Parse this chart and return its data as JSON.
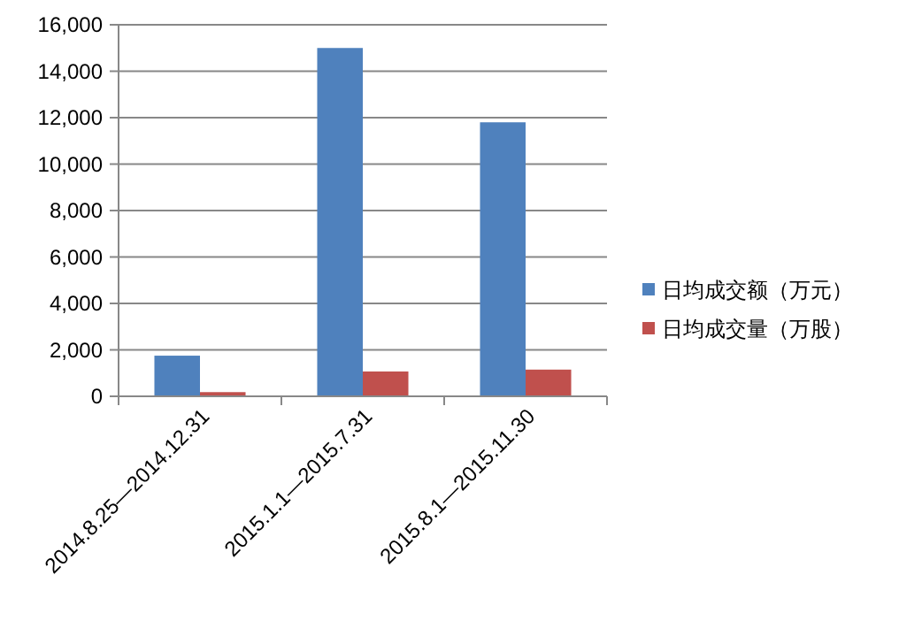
{
  "chart_data": {
    "type": "bar",
    "categories": [
      "2014.8.25—2014.12.31",
      "2015.1.1—2015.7.31",
      "2015.8.1—2015.11.30"
    ],
    "series": [
      {
        "name": "日均成交额（万元）",
        "color": "#4f81bd",
        "values": [
          1750,
          15000,
          11800
        ]
      },
      {
        "name": "日均成交量（万股）",
        "color": "#c0504d",
        "values": [
          180,
          1070,
          1150
        ]
      }
    ],
    "ylim": [
      0,
      16000
    ],
    "yticks": [
      {
        "value": 0,
        "label": "0"
      },
      {
        "value": 2000,
        "label": "2,000"
      },
      {
        "value": 4000,
        "label": "4,000"
      },
      {
        "value": 6000,
        "label": "6,000"
      },
      {
        "value": 8000,
        "label": "8,000"
      },
      {
        "value": 10000,
        "label": "10,000"
      },
      {
        "value": 12000,
        "label": "12,000"
      },
      {
        "value": 14000,
        "label": "14,000"
      },
      {
        "value": 16000,
        "label": "16,000"
      }
    ],
    "grid": "y",
    "legend": "right"
  }
}
